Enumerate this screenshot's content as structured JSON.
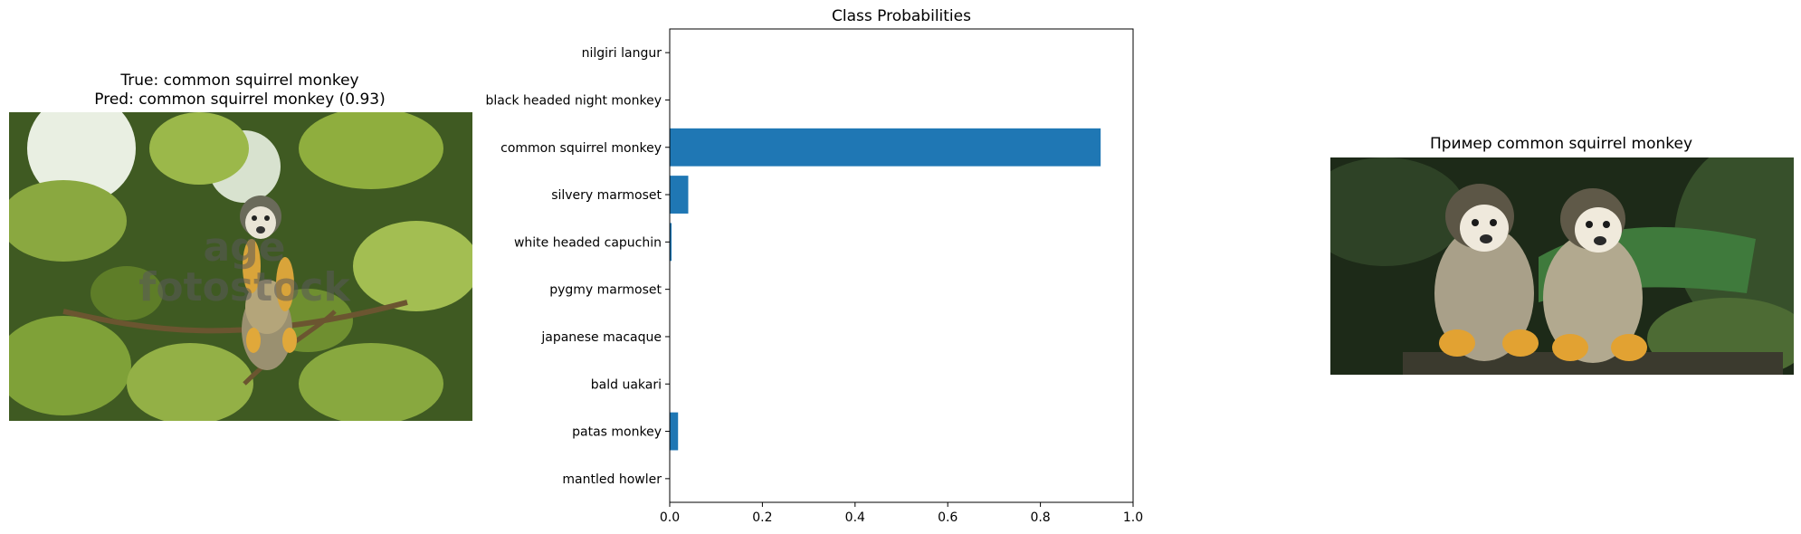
{
  "left_panel": {
    "title_line1": "True: common squirrel monkey",
    "title_line2": "Pred: common squirrel monkey (0.93)",
    "image_icon": "squirrel-monkey-photo",
    "watermark_line1": "age",
    "watermark_line2": "fotostock"
  },
  "right_panel": {
    "title": "Пример common squirrel monkey",
    "image_icon": "two-squirrel-monkeys-photo"
  },
  "chart_data": {
    "type": "bar",
    "orientation": "horizontal",
    "title": "Class Probabilities",
    "xlabel": "",
    "ylabel": "",
    "categories": [
      "nilgiri langur",
      "black headed night monkey",
      "common squirrel monkey",
      "silvery marmoset",
      "white headed capuchin",
      "pygmy marmoset",
      "japanese macaque",
      "bald uakari",
      "patas monkey",
      "mantled howler"
    ],
    "values": [
      0.0,
      0.0,
      0.93,
      0.04,
      0.004,
      0.0,
      0.0,
      0.0,
      0.018,
      0.0
    ],
    "xlim": [
      0,
      1.0
    ],
    "xticks": [
      "0.0",
      "0.2",
      "0.4",
      "0.6",
      "0.8",
      "1.0"
    ],
    "bar_color": "#1f77b4",
    "grid": false
  }
}
